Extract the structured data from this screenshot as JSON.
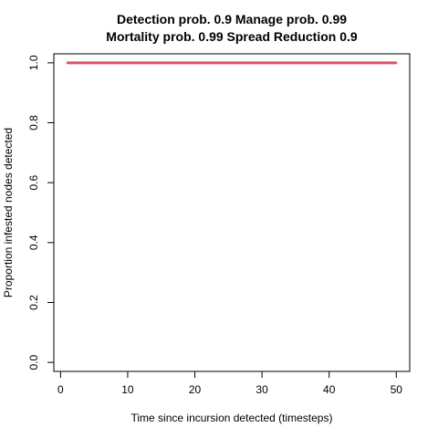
{
  "chart_data": {
    "type": "line",
    "title_lines": [
      "Detection prob. 0.9 Manage prob. 0.99",
      "Mortality prob. 0.99 Spread Reduction 0.9"
    ],
    "xlabel": "Time since incursion detected (timesteps)",
    "ylabel": "Proportion infested nodes detected",
    "xlim": [
      -1,
      52
    ],
    "ylim": [
      -0.03,
      1.03
    ],
    "x_ticks": [
      0,
      10,
      20,
      30,
      40,
      50
    ],
    "y_ticks": [
      0.0,
      0.2,
      0.4,
      0.6,
      0.8,
      1.0
    ],
    "x_tick_labels": [
      "0",
      "10",
      "20",
      "30",
      "40",
      "50"
    ],
    "y_tick_labels": [
      "0.0",
      "0.2",
      "0.4",
      "0.6",
      "0.8",
      "1.0"
    ],
    "series": [
      {
        "name": "proportion detected",
        "color": "#d9526b",
        "x": [
          1,
          2,
          3,
          4,
          5,
          6,
          7,
          8,
          9,
          10,
          11,
          12,
          13,
          14,
          15,
          16,
          17,
          18,
          19,
          20,
          21,
          22,
          23,
          24,
          25,
          26,
          27,
          28,
          29,
          30,
          31,
          32,
          33,
          34,
          35,
          36,
          37,
          38,
          39,
          40,
          41,
          42,
          43,
          44,
          45,
          46,
          47,
          48,
          49,
          50
        ],
        "values": [
          1,
          1,
          1,
          1,
          1,
          1,
          1,
          1,
          1,
          1,
          1,
          1,
          1,
          1,
          1,
          1,
          1,
          1,
          1,
          1,
          1,
          1,
          1,
          1,
          1,
          1,
          1,
          1,
          1,
          1,
          1,
          1,
          1,
          1,
          1,
          1,
          1,
          1,
          1,
          1,
          1,
          1,
          1,
          1,
          1,
          1,
          1,
          1,
          1,
          1
        ]
      }
    ]
  }
}
